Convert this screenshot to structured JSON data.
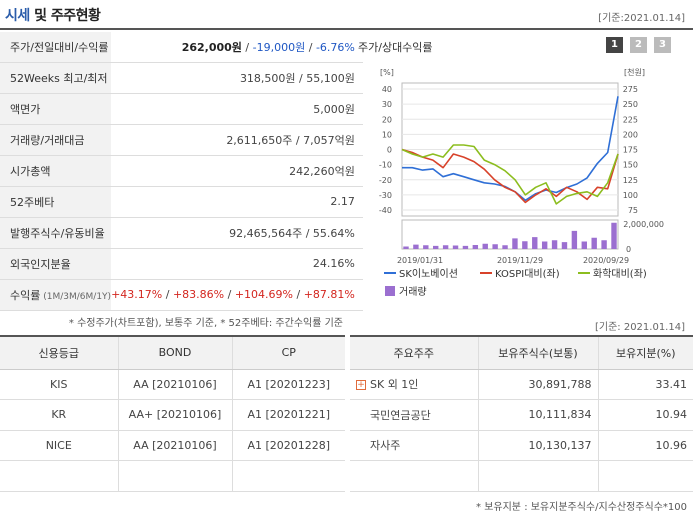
{
  "header": {
    "title_part1": "시세",
    "title_part2": " 및 주주현황",
    "date": "[기준:2021.01.14]"
  },
  "market": {
    "rows": [
      {
        "label": "주가/전일대비/수익률",
        "value_main": "262,000원",
        "value_sep": " / ",
        "value_change": "-19,000원",
        "value_sep2": " / ",
        "value_rate": "-6.76%"
      },
      {
        "label": "52Weeks 최고/최저",
        "value": "318,500원 / 55,100원"
      },
      {
        "label": "액면가",
        "value": "5,000원"
      },
      {
        "label": "거래량/거래대금",
        "value": "2,611,650주 / 7,057억원"
      },
      {
        "label": "시가총액",
        "value": "242,260억원"
      },
      {
        "label": "52주베타",
        "value": "2.17"
      },
      {
        "label": "발행주식수/유동비율",
        "value": "92,465,564주 / 55.64%"
      },
      {
        "label": "외국인지분율",
        "value": "24.16%"
      }
    ],
    "returns": {
      "label": "수익률",
      "label_sub": " (1M/3M/6M/1Y)",
      "values": [
        "+43.17%",
        "+83.86%",
        "+104.69%",
        "+87.81%"
      ]
    }
  },
  "chart_panel": {
    "title": "주가/상대수익률",
    "period_buttons": [
      "1",
      "2",
      "3"
    ],
    "active_button": "1"
  },
  "chart_data": {
    "type": "line",
    "title": "주가/상대수익률",
    "y_left_label": "[%]",
    "y_right_label": "[천원]",
    "y_left_ticks": [
      "40",
      "30",
      "20",
      "10",
      "0",
      "-10",
      "-20",
      "-30",
      "-40"
    ],
    "y_right_ticks": [
      "275",
      "250",
      "225",
      "200",
      "175",
      "150",
      "125",
      "100",
      "75"
    ],
    "ylim_left": [
      -40,
      40
    ],
    "ylim_right": [
      75,
      275
    ],
    "x_ticks": [
      "2019/01/31",
      "2019/11/29",
      "2020/09/29"
    ],
    "volume_ticks": [
      "2,000,000",
      "0"
    ],
    "volume_max": 2000000,
    "series": [
      {
        "name": "SK이노베이션",
        "axis": "right",
        "color": "#2f6fd6",
        "values": [
          145,
          145,
          141,
          143,
          130,
          135,
          130,
          125,
          120,
          118,
          114,
          105,
          91,
          102,
          108,
          104,
          112,
          118,
          128,
          152,
          170,
          263
        ]
      },
      {
        "name": "KOSPI대비(좌)",
        "axis": "left",
        "color": "#d8422a",
        "values": [
          0,
          -2,
          -5,
          -7,
          -12,
          -3,
          -5,
          -8,
          -13,
          -20,
          -25,
          -28,
          -35,
          -30,
          -26,
          -31,
          -25,
          -28,
          -33,
          -25,
          -26,
          -3
        ]
      },
      {
        "name": "화학대비(좌)",
        "axis": "left",
        "color": "#8cbd1f",
        "values": [
          0,
          -3,
          -5,
          -3,
          -5,
          3,
          3,
          2,
          -7,
          -10,
          -14,
          -20,
          -30,
          -25,
          -22,
          -36,
          -31,
          -29,
          -28,
          -31,
          -22,
          -3
        ]
      }
    ],
    "volume": {
      "name": "거래량",
      "color": "#9b6fd0",
      "values": [
        200000,
        350000,
        300000,
        250000,
        300000,
        280000,
        250000,
        320000,
        420000,
        380000,
        300000,
        850000,
        620000,
        950000,
        600000,
        700000,
        550000,
        1450000,
        600000,
        900000,
        700000,
        2100000
      ]
    },
    "legend": [
      "SK이노베이션",
      "KOSPI대비(좌)",
      "화학대비(좌)",
      "거래량"
    ]
  },
  "notes": {
    "note1": "* 수정주가(차트포함), 보통주 기준, * 52주베타: 주간수익률 기준",
    "note_date": "[기준: 2021.01.14]",
    "note2": "* 보유지분 : 보유지분주식수/지수산정주식수*100"
  },
  "credit": {
    "headers": [
      "신용등급",
      "BOND",
      "CP"
    ],
    "rows": [
      {
        "agency": "KIS",
        "bond": "AA  [20210106]",
        "cp": "A1  [20201223]"
      },
      {
        "agency": "KR",
        "bond": "AA+  [20210106]",
        "cp": "A1  [20201221]"
      },
      {
        "agency": "NICE",
        "bond": "AA  [20210106]",
        "cp": "A1  [20201228]"
      }
    ]
  },
  "shareholders": {
    "headers": [
      "주요주주",
      "보유주식수(보통)",
      "보유지분(%)"
    ],
    "rows": [
      {
        "name": "SK 외 1인",
        "shares": "30,891,788",
        "ratio": "33.41"
      },
      {
        "name": "국민연금공단",
        "shares": "10,111,834",
        "ratio": "10.94"
      },
      {
        "name": "자사주",
        "shares": "10,130,137",
        "ratio": "10.96"
      }
    ]
  }
}
